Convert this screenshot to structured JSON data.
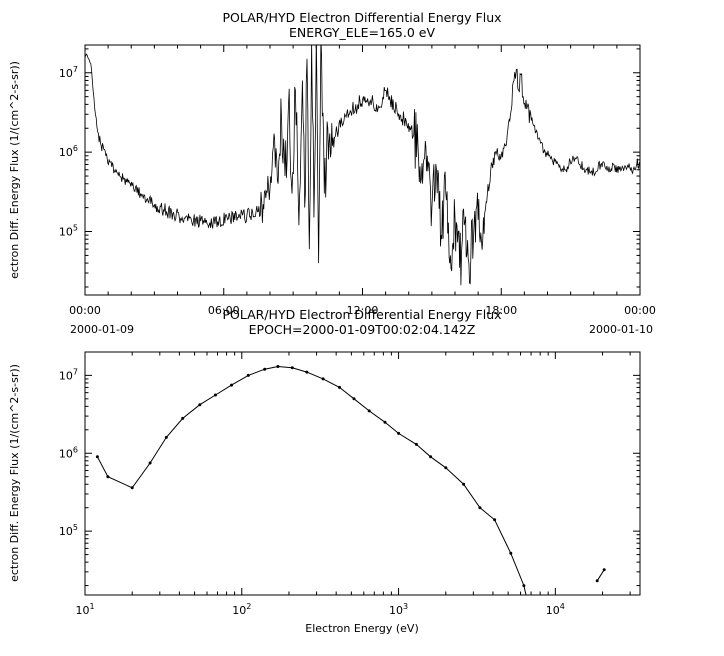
{
  "background": "#ffffff",
  "chart_data": [
    {
      "type": "line",
      "title": "POLAR/HYD  Electron Differential Energy Flux",
      "subtitle": "ENERGY_ELE=165.0 eV",
      "ylabel": "ectron Diff. Energy Flux (1/(cm^2-s-sr))",
      "x_axis": "time",
      "xlim_hours": [
        0,
        24
      ],
      "x_ticks": [
        {
          "hour": 0,
          "label": "00:00",
          "date": "2000-01-09"
        },
        {
          "hour": 6,
          "label": "06:00"
        },
        {
          "hour": 12,
          "label": "12:00"
        },
        {
          "hour": 18,
          "label": "18:00"
        },
        {
          "hour": 24,
          "label": "00:00",
          "date": "2000-01-10"
        }
      ],
      "y_tick_exponents": [
        5,
        6,
        7
      ],
      "ylim_log10": [
        4.2,
        7.35
      ],
      "line_color": "#000000",
      "points_hour_flux": [
        [
          0.0,
          17000000.0
        ],
        [
          0.15,
          15000000.0
        ],
        [
          0.25,
          13000000.0
        ],
        [
          0.35,
          6000000.0
        ],
        [
          0.45,
          3000000.0
        ],
        [
          0.55,
          1800000.0
        ],
        [
          0.7,
          1200000.0
        ],
        [
          0.9,
          900000.0
        ],
        [
          1.1,
          750000.0
        ],
        [
          1.3,
          600000.0
        ],
        [
          1.5,
          500000.0
        ],
        [
          1.8,
          420000.0
        ],
        [
          2.1,
          350000.0
        ],
        [
          2.4,
          300000.0
        ],
        [
          2.7,
          260000.0
        ],
        [
          3.0,
          220000.0
        ],
        [
          3.4,
          190000.0
        ],
        [
          3.8,
          170000.0
        ],
        [
          4.2,
          150000.0
        ],
        [
          4.6,
          140000.0
        ],
        [
          5.0,
          135000.0
        ],
        [
          5.4,
          130000.0
        ],
        [
          5.8,
          140000.0
        ],
        [
          6.2,
          145000.0
        ],
        [
          6.6,
          150000.0
        ],
        [
          7.0,
          160000.0
        ],
        [
          7.4,
          180000.0
        ],
        [
          7.7,
          220000.0
        ],
        [
          8.0,
          350000.0
        ],
        [
          8.2,
          1500000.0
        ],
        [
          8.35,
          400000.0
        ],
        [
          8.5,
          2500000.0
        ],
        [
          8.65,
          500000.0
        ],
        [
          8.8,
          4000000.0
        ],
        [
          8.95,
          300000.0
        ],
        [
          9.1,
          6000000.0
        ],
        [
          9.25,
          120000.0
        ],
        [
          9.4,
          8000000.0
        ],
        [
          9.5,
          200000.0
        ],
        [
          9.6,
          15000000.0
        ],
        [
          9.7,
          60000.0
        ],
        [
          9.8,
          25000000.0
        ],
        [
          9.9,
          150000.0
        ],
        [
          10.0,
          30000000.0
        ],
        [
          10.1,
          40000.0
        ],
        [
          10.2,
          28000000.0
        ],
        [
          10.35,
          300000.0
        ],
        [
          10.5,
          2000000.0
        ],
        [
          10.7,
          1200000.0
        ],
        [
          10.9,
          1800000.0
        ],
        [
          11.2,
          2500000.0
        ],
        [
          11.5,
          3200000.0
        ],
        [
          11.8,
          4000000.0
        ],
        [
          12.1,
          5000000.0
        ],
        [
          12.4,
          4500000.0
        ],
        [
          12.7,
          3800000.0
        ],
        [
          13.0,
          6000000.0
        ],
        [
          13.2,
          4500000.0
        ],
        [
          13.5,
          3200000.0
        ],
        [
          13.8,
          2600000.0
        ],
        [
          14.1,
          2000000.0
        ],
        [
          14.4,
          1200000.0
        ],
        [
          14.6,
          400000.0
        ],
        [
          14.8,
          900000.0
        ],
        [
          15.0,
          200000.0
        ],
        [
          15.2,
          600000.0
        ],
        [
          15.4,
          90000.0
        ],
        [
          15.6,
          300000.0
        ],
        [
          15.8,
          50000.0
        ],
        [
          16.0,
          150000.0
        ],
        [
          16.2,
          35000.0
        ],
        [
          16.4,
          120000.0
        ],
        [
          16.6,
          40000.0
        ],
        [
          16.8,
          80000.0
        ],
        [
          17.0,
          140000.0
        ],
        [
          17.2,
          80000.0
        ],
        [
          17.4,
          300000.0
        ],
        [
          17.6,
          700000.0
        ],
        [
          17.8,
          1000000.0
        ],
        [
          18.0,
          900000.0
        ],
        [
          18.2,
          1200000.0
        ],
        [
          18.4,
          3000000.0
        ],
        [
          18.55,
          8000000.0
        ],
        [
          18.65,
          11000000.0
        ],
        [
          18.75,
          6000000.0
        ],
        [
          18.85,
          9500000.0
        ],
        [
          18.95,
          5000000.0
        ],
        [
          19.1,
          3500000.0
        ],
        [
          19.3,
          2500000.0
        ],
        [
          19.5,
          1800000.0
        ],
        [
          19.7,
          1300000.0
        ],
        [
          19.9,
          1000000.0
        ],
        [
          20.2,
          800000.0
        ],
        [
          20.5,
          650000.0
        ],
        [
          20.8,
          600000.0
        ],
        [
          21.1,
          900000.0
        ],
        [
          21.4,
          700000.0
        ],
        [
          21.7,
          600000.0
        ],
        [
          22.0,
          550000.0
        ],
        [
          22.3,
          700000.0
        ],
        [
          22.6,
          600000.0
        ],
        [
          22.9,
          650000.0
        ],
        [
          23.2,
          600000.0
        ],
        [
          23.5,
          650000.0
        ],
        [
          23.8,
          600000.0
        ],
        [
          24.0,
          700000.0
        ]
      ],
      "noise_regions_hour_amp": [
        [
          0,
          0.6,
          0.03
        ],
        [
          0.6,
          3,
          0.07
        ],
        [
          3,
          7.5,
          0.09
        ],
        [
          7.5,
          8.1,
          0.13
        ],
        [
          8.1,
          10.7,
          0.45
        ],
        [
          10.7,
          14.2,
          0.1
        ],
        [
          14.2,
          17.3,
          0.38
        ],
        [
          17.3,
          18.3,
          0.08
        ],
        [
          18.3,
          19.3,
          0.12
        ],
        [
          19.3,
          24,
          0.06
        ]
      ]
    },
    {
      "type": "scatter",
      "title": "POLAR/HYD  Electron Differential Energy Flux",
      "subtitle": "EPOCH=2000-01-09T00:02:04.142Z",
      "xlabel": "Electron Energy (eV)",
      "ylabel": "ectron Diff. Energy Flux (1/(cm^2-s-sr))",
      "x_tick_exponents": [
        1,
        2,
        3,
        4
      ],
      "xlim_log10": [
        1,
        4.54
      ],
      "y_tick_exponents": [
        5,
        6,
        7
      ],
      "ylim_log10": [
        4.18,
        7.3
      ],
      "line_color": "#000000",
      "segments_ev_flux": [
        [
          [
            12,
            900000.0
          ],
          [
            14,
            500000.0
          ],
          [
            20,
            360000.0
          ],
          [
            26,
            750000.0
          ],
          [
            33,
            1600000.0
          ],
          [
            42,
            2800000.0
          ],
          [
            54,
            4200000.0
          ],
          [
            68,
            5600000.0
          ],
          [
            86,
            7500000.0
          ],
          [
            110,
            10000000.0
          ],
          [
            140,
            12000000.0
          ],
          [
            170,
            13000000.0
          ],
          [
            210,
            12500000.0
          ],
          [
            260,
            11000000.0
          ],
          [
            330,
            9000000.0
          ],
          [
            420,
            7000000.0
          ],
          [
            520,
            5000000.0
          ],
          [
            650,
            3500000.0
          ],
          [
            820,
            2500000.0
          ],
          [
            1000,
            1800000.0
          ],
          [
            1300,
            1300000.0
          ],
          [
            1600,
            900000.0
          ],
          [
            2000,
            650000.0
          ],
          [
            2600,
            400000.0
          ],
          [
            3300,
            200000.0
          ],
          [
            4100,
            140000.0
          ],
          [
            5200,
            52000.0
          ],
          [
            6300,
            20000.0
          ],
          [
            6800,
            10000.0
          ]
        ],
        [
          [
            18500,
            23000.0
          ],
          [
            20500,
            32000.0
          ]
        ]
      ]
    }
  ]
}
